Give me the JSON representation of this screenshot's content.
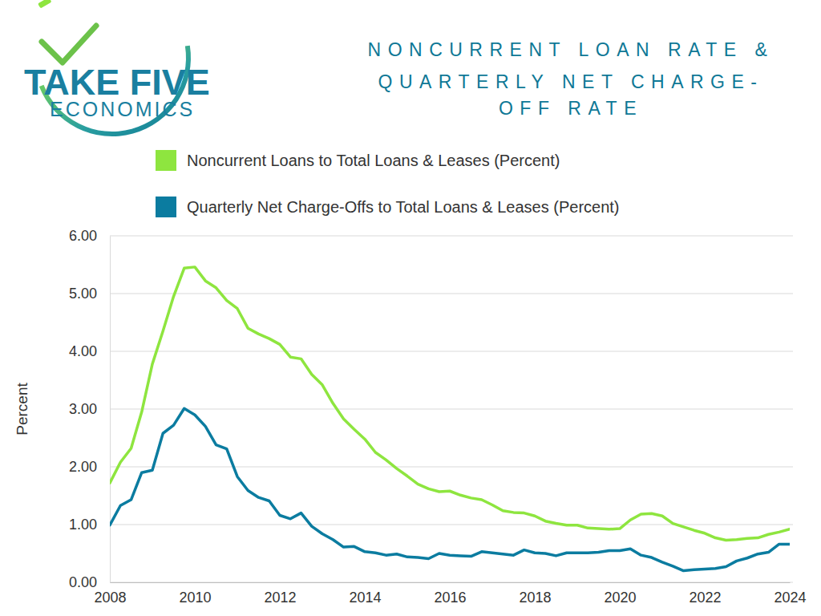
{
  "chart_data": {
    "type": "line",
    "logo": [
      "TAKE FIVE",
      "ECONOMICS"
    ],
    "title": [
      "NONCURRENT LOAN RATE &",
      "QUARTERLY NET CHARGE-",
      "OFF RATE"
    ],
    "y_label": "Percent",
    "x": [
      2008,
      2008.25,
      2008.5,
      2008.75,
      2009,
      2009.25,
      2009.5,
      2009.75,
      2010,
      2010.25,
      2010.5,
      2010.75,
      2011,
      2011.25,
      2011.5,
      2011.75,
      2012,
      2012.25,
      2012.5,
      2012.75,
      2013,
      2013.25,
      2013.5,
      2013.75,
      2014,
      2014.25,
      2014.5,
      2014.75,
      2015,
      2015.25,
      2015.5,
      2015.75,
      2016,
      2016.25,
      2016.5,
      2016.75,
      2017,
      2017.25,
      2017.5,
      2017.75,
      2018,
      2018.25,
      2018.5,
      2018.75,
      2019,
      2019.25,
      2019.5,
      2019.75,
      2020,
      2020.25,
      2020.5,
      2020.75,
      2021,
      2021.25,
      2021.5,
      2021.75,
      2022,
      2022.25,
      2022.5,
      2022.75,
      2023,
      2023.25,
      2023.5,
      2023.75,
      2024
    ],
    "series": [
      {
        "name": "Noncurrent Loans to Total Loans & Leases (Percent)",
        "color": "#8ee53f",
        "values": [
          1.72,
          2.08,
          2.32,
          2.95,
          3.78,
          4.35,
          4.95,
          5.44,
          5.46,
          5.22,
          5.1,
          4.88,
          4.74,
          4.4,
          4.3,
          4.22,
          4.12,
          3.9,
          3.87,
          3.6,
          3.42,
          3.1,
          2.83,
          2.65,
          2.48,
          2.25,
          2.12,
          1.97,
          1.84,
          1.7,
          1.62,
          1.57,
          1.58,
          1.51,
          1.46,
          1.43,
          1.34,
          1.24,
          1.21,
          1.2,
          1.15,
          1.06,
          1.02,
          0.99,
          0.99,
          0.94,
          0.93,
          0.92,
          0.93,
          1.08,
          1.18,
          1.19,
          1.15,
          1.02,
          0.96,
          0.9,
          0.85,
          0.77,
          0.73,
          0.74,
          0.76,
          0.77,
          0.83,
          0.87,
          0.92
        ]
      },
      {
        "name": "Quarterly Net Charge-Offs to Total Loans & Leases (Percent)",
        "color": "#0b7ca0",
        "values": [
          0.99,
          1.33,
          1.43,
          1.9,
          1.94,
          2.58,
          2.72,
          3.01,
          2.9,
          2.7,
          2.38,
          2.31,
          1.83,
          1.59,
          1.47,
          1.41,
          1.16,
          1.1,
          1.2,
          0.97,
          0.84,
          0.74,
          0.61,
          0.62,
          0.53,
          0.51,
          0.47,
          0.49,
          0.44,
          0.43,
          0.41,
          0.5,
          0.47,
          0.46,
          0.45,
          0.53,
          0.51,
          0.49,
          0.47,
          0.56,
          0.51,
          0.5,
          0.46,
          0.51,
          0.51,
          0.51,
          0.52,
          0.55,
          0.55,
          0.58,
          0.47,
          0.43,
          0.35,
          0.28,
          0.2,
          0.22,
          0.23,
          0.24,
          0.27,
          0.37,
          0.42,
          0.49,
          0.52,
          0.66,
          0.66
        ]
      }
    ],
    "xlim": [
      2008,
      2024
    ],
    "xticks": [
      2008,
      2010,
      2012,
      2014,
      2016,
      2018,
      2020,
      2022,
      2024
    ],
    "ylim": [
      0,
      6
    ],
    "yticks": [
      {
        "value": 0,
        "label": "0.00"
      },
      {
        "value": 1,
        "label": "1.00"
      },
      {
        "value": 2,
        "label": "2.00"
      },
      {
        "value": 3,
        "label": "3.00"
      },
      {
        "value": 4,
        "label": "4.00"
      },
      {
        "value": 5,
        "label": "5.00"
      },
      {
        "value": 6,
        "label": "6.00"
      }
    ],
    "grid": true
  }
}
